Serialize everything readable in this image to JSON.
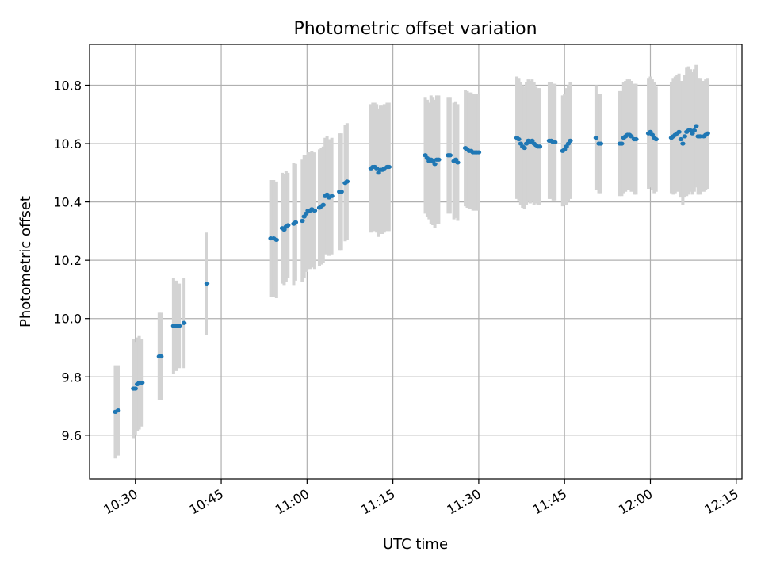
{
  "chart_data": {
    "type": "scatter",
    "title": "Photometric offset variation",
    "xlabel": "UTC time",
    "ylabel": "Photometric offset",
    "xlim": [
      "10:22",
      "12:16"
    ],
    "ylim": [
      9.45,
      10.94
    ],
    "grid": true,
    "x_ticks": [
      "10:30",
      "10:45",
      "11:00",
      "11:15",
      "11:30",
      "11:45",
      "12:00",
      "12:15"
    ],
    "y_ticks": [
      "9.6",
      "9.8",
      "10.0",
      "10.2",
      "10.4",
      "10.6",
      "10.8"
    ],
    "colors": {
      "point": "#1f77b4",
      "errorbar": "#d3d3d3"
    },
    "series": [
      {
        "points": [
          {
            "x": "10:26:30",
            "y": 9.68,
            "err": 0.16
          },
          {
            "x": "10:27:00",
            "y": 9.685,
            "err": 0.155
          },
          {
            "x": "10:29:40",
            "y": 9.76,
            "err": 0.17
          },
          {
            "x": "10:30:00",
            "y": 9.76,
            "err": 0.16
          },
          {
            "x": "10:30:20",
            "y": 9.775,
            "err": 0.16
          },
          {
            "x": "10:30:40",
            "y": 9.78,
            "err": 0.16
          },
          {
            "x": "10:31:10",
            "y": 9.78,
            "err": 0.15
          },
          {
            "x": "10:34:10",
            "y": 9.87,
            "err": 0.15
          },
          {
            "x": "10:34:30",
            "y": 9.87,
            "err": 0.15
          },
          {
            "x": "10:36:40",
            "y": 9.975,
            "err": 0.165
          },
          {
            "x": "10:37:10",
            "y": 9.975,
            "err": 0.155
          },
          {
            "x": "10:37:40",
            "y": 9.975,
            "err": 0.145
          },
          {
            "x": "10:38:30",
            "y": 9.985,
            "err": 0.155
          },
          {
            "x": "10:42:30",
            "y": 10.12,
            "err": 0.175
          },
          {
            "x": "10:53:40",
            "y": 10.275,
            "err": 0.2
          },
          {
            "x": "10:54:10",
            "y": 10.275,
            "err": 0.2
          },
          {
            "x": "10:54:40",
            "y": 10.27,
            "err": 0.2
          },
          {
            "x": "10:55:40",
            "y": 10.31,
            "err": 0.19
          },
          {
            "x": "10:56:00",
            "y": 10.305,
            "err": 0.19
          },
          {
            "x": "10:56:20",
            "y": 10.315,
            "err": 0.19
          },
          {
            "x": "10:56:40",
            "y": 10.32,
            "err": 0.18
          },
          {
            "x": "10:57:40",
            "y": 10.325,
            "err": 0.21
          },
          {
            "x": "10:58:00",
            "y": 10.33,
            "err": 0.2
          },
          {
            "x": "10:59:10",
            "y": 10.335,
            "err": 0.21
          },
          {
            "x": "10:59:30",
            "y": 10.35,
            "err": 0.21
          },
          {
            "x": "10:59:50",
            "y": 10.36,
            "err": 0.2
          },
          {
            "x": "11:00:10",
            "y": 10.37,
            "err": 0.2
          },
          {
            "x": "11:00:30",
            "y": 10.37,
            "err": 0.2
          },
          {
            "x": "11:00:50",
            "y": 10.375,
            "err": 0.2
          },
          {
            "x": "11:01:20",
            "y": 10.37,
            "err": 0.2
          },
          {
            "x": "11:02:10",
            "y": 10.38,
            "err": 0.2
          },
          {
            "x": "11:02:30",
            "y": 10.385,
            "err": 0.2
          },
          {
            "x": "11:02:50",
            "y": 10.39,
            "err": 0.2
          },
          {
            "x": "11:03:10",
            "y": 10.42,
            "err": 0.2
          },
          {
            "x": "11:03:30",
            "y": 10.425,
            "err": 0.2
          },
          {
            "x": "11:03:50",
            "y": 10.415,
            "err": 0.2
          },
          {
            "x": "11:04:20",
            "y": 10.42,
            "err": 0.2
          },
          {
            "x": "11:05:40",
            "y": 10.435,
            "err": 0.2
          },
          {
            "x": "11:06:00",
            "y": 10.435,
            "err": 0.2
          },
          {
            "x": "11:06:40",
            "y": 10.465,
            "err": 0.2
          },
          {
            "x": "11:07:00",
            "y": 10.47,
            "err": 0.2
          },
          {
            "x": "11:11:10",
            "y": 10.515,
            "err": 0.22
          },
          {
            "x": "11:11:30",
            "y": 10.52,
            "err": 0.22
          },
          {
            "x": "11:11:50",
            "y": 10.52,
            "err": 0.22
          },
          {
            "x": "11:12:10",
            "y": 10.515,
            "err": 0.22
          },
          {
            "x": "11:12:30",
            "y": 10.5,
            "err": 0.22
          },
          {
            "x": "11:12:50",
            "y": 10.51,
            "err": 0.22
          },
          {
            "x": "11:13:10",
            "y": 10.51,
            "err": 0.22
          },
          {
            "x": "11:13:30",
            "y": 10.515,
            "err": 0.22
          },
          {
            "x": "11:14:00",
            "y": 10.52,
            "err": 0.22
          },
          {
            "x": "11:14:20",
            "y": 10.52,
            "err": 0.22
          },
          {
            "x": "11:20:40",
            "y": 10.56,
            "err": 0.2
          },
          {
            "x": "11:21:00",
            "y": 10.55,
            "err": 0.2
          },
          {
            "x": "11:21:20",
            "y": 10.54,
            "err": 0.2
          },
          {
            "x": "11:21:40",
            "y": 10.545,
            "err": 0.22
          },
          {
            "x": "11:22:00",
            "y": 10.54,
            "err": 0.22
          },
          {
            "x": "11:22:20",
            "y": 10.53,
            "err": 0.22
          },
          {
            "x": "11:22:40",
            "y": 10.545,
            "err": 0.22
          },
          {
            "x": "11:23:00",
            "y": 10.545,
            "err": 0.22
          },
          {
            "x": "11:24:40",
            "y": 10.56,
            "err": 0.2
          },
          {
            "x": "11:25:00",
            "y": 10.56,
            "err": 0.2
          },
          {
            "x": "11:25:40",
            "y": 10.54,
            "err": 0.2
          },
          {
            "x": "11:26:00",
            "y": 10.545,
            "err": 0.2
          },
          {
            "x": "11:26:20",
            "y": 10.535,
            "err": 0.2
          },
          {
            "x": "11:27:40",
            "y": 10.585,
            "err": 0.2
          },
          {
            "x": "11:28:00",
            "y": 10.58,
            "err": 0.2
          },
          {
            "x": "11:28:20",
            "y": 10.575,
            "err": 0.2
          },
          {
            "x": "11:28:40",
            "y": 10.575,
            "err": 0.2
          },
          {
            "x": "11:29:00",
            "y": 10.57,
            "err": 0.2
          },
          {
            "x": "11:29:20",
            "y": 10.57,
            "err": 0.2
          },
          {
            "x": "11:29:40",
            "y": 10.57,
            "err": 0.2
          },
          {
            "x": "11:30:00",
            "y": 10.57,
            "err": 0.2
          },
          {
            "x": "11:36:40",
            "y": 10.62,
            "err": 0.21
          },
          {
            "x": "11:37:00",
            "y": 10.615,
            "err": 0.21
          },
          {
            "x": "11:37:20",
            "y": 10.6,
            "err": 0.21
          },
          {
            "x": "11:37:40",
            "y": 10.59,
            "err": 0.21
          },
          {
            "x": "11:38:00",
            "y": 10.585,
            "err": 0.21
          },
          {
            "x": "11:38:20",
            "y": 10.6,
            "err": 0.21
          },
          {
            "x": "11:38:40",
            "y": 10.61,
            "err": 0.21
          },
          {
            "x": "11:39:00",
            "y": 10.605,
            "err": 0.21
          },
          {
            "x": "11:39:20",
            "y": 10.61,
            "err": 0.21
          },
          {
            "x": "11:39:40",
            "y": 10.6,
            "err": 0.21
          },
          {
            "x": "11:40:00",
            "y": 10.595,
            "err": 0.2
          },
          {
            "x": "11:40:20",
            "y": 10.59,
            "err": 0.2
          },
          {
            "x": "11:40:40",
            "y": 10.59,
            "err": 0.2
          },
          {
            "x": "11:42:20",
            "y": 10.61,
            "err": 0.2
          },
          {
            "x": "11:42:40",
            "y": 10.61,
            "err": 0.2
          },
          {
            "x": "11:43:00",
            "y": 10.605,
            "err": 0.2
          },
          {
            "x": "11:43:20",
            "y": 10.605,
            "err": 0.2
          },
          {
            "x": "11:44:40",
            "y": 10.575,
            "err": 0.19
          },
          {
            "x": "11:45:00",
            "y": 10.58,
            "err": 0.19
          },
          {
            "x": "11:45:20",
            "y": 10.59,
            "err": 0.2
          },
          {
            "x": "11:45:40",
            "y": 10.6,
            "err": 0.2
          },
          {
            "x": "11:46:00",
            "y": 10.61,
            "err": 0.2
          },
          {
            "x": "11:50:30",
            "y": 10.62,
            "err": 0.18
          },
          {
            "x": "11:51:00",
            "y": 10.6,
            "err": 0.17
          },
          {
            "x": "11:51:20",
            "y": 10.6,
            "err": 0.17
          },
          {
            "x": "11:54:40",
            "y": 10.6,
            "err": 0.18
          },
          {
            "x": "11:55:00",
            "y": 10.6,
            "err": 0.18
          },
          {
            "x": "11:55:20",
            "y": 10.62,
            "err": 0.19
          },
          {
            "x": "11:55:40",
            "y": 10.625,
            "err": 0.19
          },
          {
            "x": "11:56:00",
            "y": 10.63,
            "err": 0.19
          },
          {
            "x": "11:56:20",
            "y": 10.63,
            "err": 0.19
          },
          {
            "x": "11:56:40",
            "y": 10.625,
            "err": 0.19
          },
          {
            "x": "11:57:10",
            "y": 10.615,
            "err": 0.19
          },
          {
            "x": "11:57:30",
            "y": 10.615,
            "err": 0.19
          },
          {
            "x": "11:59:40",
            "y": 10.635,
            "err": 0.19
          },
          {
            "x": "12:00:00",
            "y": 10.64,
            "err": 0.19
          },
          {
            "x": "12:00:20",
            "y": 10.63,
            "err": 0.19
          },
          {
            "x": "12:00:40",
            "y": 10.62,
            "err": 0.19
          },
          {
            "x": "12:01:00",
            "y": 10.615,
            "err": 0.18
          },
          {
            "x": "12:03:40",
            "y": 10.62,
            "err": 0.19
          },
          {
            "x": "12:04:00",
            "y": 10.625,
            "err": 0.2
          },
          {
            "x": "12:04:20",
            "y": 10.63,
            "err": 0.2
          },
          {
            "x": "12:04:40",
            "y": 10.635,
            "err": 0.2
          },
          {
            "x": "12:05:00",
            "y": 10.64,
            "err": 0.2
          },
          {
            "x": "12:05:20",
            "y": 10.615,
            "err": 0.2
          },
          {
            "x": "12:05:40",
            "y": 10.6,
            "err": 0.21
          },
          {
            "x": "12:06:00",
            "y": 10.625,
            "err": 0.21
          },
          {
            "x": "12:06:20",
            "y": 10.64,
            "err": 0.22
          },
          {
            "x": "12:06:40",
            "y": 10.645,
            "err": 0.22
          },
          {
            "x": "12:07:00",
            "y": 10.645,
            "err": 0.21
          },
          {
            "x": "12:07:20",
            "y": 10.635,
            "err": 0.21
          },
          {
            "x": "12:07:40",
            "y": 10.645,
            "err": 0.21
          },
          {
            "x": "12:08:00",
            "y": 10.66,
            "err": 0.21
          },
          {
            "x": "12:08:20",
            "y": 10.625,
            "err": 0.2
          },
          {
            "x": "12:08:40",
            "y": 10.625,
            "err": 0.2
          },
          {
            "x": "12:09:20",
            "y": 10.625,
            "err": 0.19
          },
          {
            "x": "12:09:40",
            "y": 10.63,
            "err": 0.19
          },
          {
            "x": "12:10:00",
            "y": 10.635,
            "err": 0.19
          }
        ]
      }
    ]
  }
}
